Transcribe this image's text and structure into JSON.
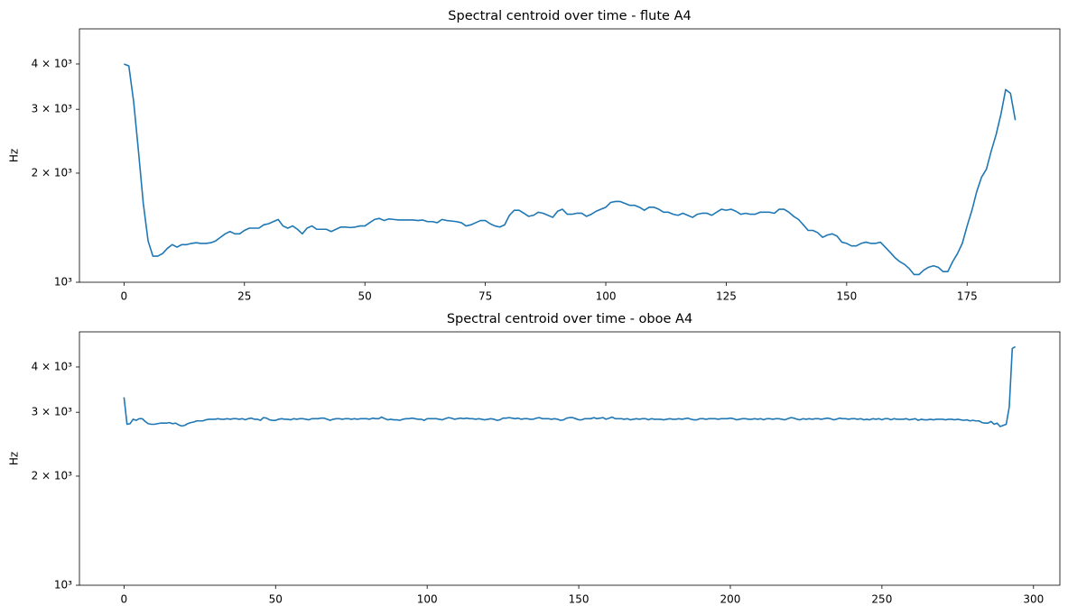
{
  "chart_data": [
    {
      "type": "line",
      "title": "Spectral centroid over time - flute A4",
      "ylabel": "Hz",
      "yscale": "log",
      "xlim": [
        -9.25,
        194.25
      ],
      "xticks": [
        0,
        25,
        50,
        75,
        100,
        125,
        150,
        175
      ],
      "ylim": [
        1000,
        5000
      ],
      "yticks": [
        {
          "value": 1000,
          "label": "10³"
        },
        {
          "value": 2000,
          "label": "2 × 10³"
        },
        {
          "value": 3000,
          "label": "3 × 10³"
        },
        {
          "value": 4000,
          "label": "4 × 10³"
        }
      ],
      "series": [
        {
          "color": "#1f77b4",
          "values": [
            4000,
            3950,
            3150,
            2300,
            1650,
            1300,
            1180,
            1180,
            1200,
            1240,
            1270,
            1250,
            1270,
            1270,
            1280,
            1285,
            1280,
            1280,
            1285,
            1300,
            1330,
            1360,
            1380,
            1360,
            1360,
            1390,
            1410,
            1410,
            1410,
            1440,
            1450,
            1470,
            1490,
            1430,
            1410,
            1430,
            1400,
            1360,
            1410,
            1430,
            1400,
            1400,
            1400,
            1380,
            1400,
            1420,
            1420,
            1415,
            1420,
            1430,
            1430,
            1460,
            1490,
            1500,
            1480,
            1495,
            1490,
            1485,
            1485,
            1485,
            1485,
            1480,
            1485,
            1470,
            1470,
            1460,
            1490,
            1480,
            1475,
            1470,
            1460,
            1430,
            1440,
            1460,
            1480,
            1480,
            1450,
            1430,
            1420,
            1440,
            1530,
            1580,
            1580,
            1550,
            1520,
            1530,
            1560,
            1550,
            1530,
            1510,
            1570,
            1590,
            1540,
            1540,
            1550,
            1550,
            1520,
            1540,
            1570,
            1590,
            1610,
            1660,
            1670,
            1670,
            1650,
            1630,
            1630,
            1610,
            1580,
            1610,
            1610,
            1590,
            1560,
            1560,
            1540,
            1530,
            1550,
            1530,
            1510,
            1540,
            1550,
            1550,
            1530,
            1560,
            1590,
            1580,
            1590,
            1570,
            1540,
            1550,
            1540,
            1540,
            1560,
            1560,
            1560,
            1550,
            1590,
            1590,
            1560,
            1520,
            1490,
            1440,
            1390,
            1390,
            1370,
            1330,
            1350,
            1360,
            1340,
            1290,
            1280,
            1260,
            1260,
            1280,
            1290,
            1280,
            1280,
            1290,
            1250,
            1210,
            1170,
            1140,
            1120,
            1090,
            1050,
            1050,
            1080,
            1100,
            1110,
            1100,
            1070,
            1070,
            1140,
            1200,
            1280,
            1430,
            1580,
            1780,
            1950,
            2050,
            2300,
            2550,
            2900,
            3400,
            3320,
            2800
          ]
        }
      ]
    },
    {
      "type": "line",
      "title": "Spectral centroid over time - oboe A4",
      "ylabel": "Hz",
      "yscale": "log",
      "xlim": [
        -14.7,
        308.7
      ],
      "xticks": [
        0,
        50,
        100,
        150,
        200,
        250,
        300
      ],
      "ylim": [
        1000,
        5000
      ],
      "yticks": [
        {
          "value": 1000,
          "label": "10³"
        },
        {
          "value": 2000,
          "label": "2 × 10³"
        },
        {
          "value": 3000,
          "label": "3 × 10³"
        },
        {
          "value": 4000,
          "label": "4 × 10³"
        }
      ],
      "series": [
        {
          "color": "#1f77b4",
          "values": [
            3300,
            2780,
            2790,
            2870,
            2850,
            2880,
            2880,
            2830,
            2790,
            2780,
            2780,
            2790,
            2800,
            2800,
            2800,
            2810,
            2790,
            2800,
            2770,
            2750,
            2760,
            2790,
            2810,
            2820,
            2840,
            2840,
            2840,
            2860,
            2870,
            2870,
            2870,
            2880,
            2870,
            2870,
            2880,
            2870,
            2880,
            2880,
            2870,
            2880,
            2860,
            2880,
            2890,
            2870,
            2870,
            2850,
            2900,
            2890,
            2860,
            2850,
            2850,
            2870,
            2880,
            2870,
            2870,
            2860,
            2880,
            2870,
            2880,
            2880,
            2870,
            2860,
            2880,
            2880,
            2880,
            2890,
            2890,
            2870,
            2850,
            2870,
            2880,
            2880,
            2870,
            2880,
            2880,
            2870,
            2880,
            2870,
            2880,
            2880,
            2880,
            2870,
            2890,
            2880,
            2880,
            2910,
            2880,
            2860,
            2870,
            2860,
            2860,
            2850,
            2870,
            2880,
            2880,
            2890,
            2880,
            2870,
            2870,
            2850,
            2880,
            2880,
            2880,
            2880,
            2870,
            2860,
            2880,
            2900,
            2890,
            2870,
            2880,
            2890,
            2880,
            2890,
            2880,
            2880,
            2870,
            2880,
            2870,
            2860,
            2870,
            2880,
            2870,
            2850,
            2860,
            2890,
            2890,
            2900,
            2890,
            2880,
            2890,
            2870,
            2880,
            2880,
            2870,
            2870,
            2890,
            2900,
            2880,
            2880,
            2880,
            2870,
            2880,
            2870,
            2850,
            2860,
            2890,
            2900,
            2900,
            2880,
            2860,
            2860,
            2880,
            2880,
            2880,
            2900,
            2880,
            2890,
            2900,
            2870,
            2890,
            2910,
            2880,
            2880,
            2880,
            2870,
            2880,
            2860,
            2870,
            2880,
            2870,
            2880,
            2880,
            2860,
            2880,
            2870,
            2870,
            2870,
            2860,
            2870,
            2880,
            2870,
            2870,
            2880,
            2870,
            2880,
            2890,
            2870,
            2860,
            2860,
            2880,
            2880,
            2870,
            2880,
            2880,
            2880,
            2870,
            2880,
            2880,
            2880,
            2890,
            2880,
            2860,
            2870,
            2880,
            2880,
            2870,
            2870,
            2880,
            2870,
            2880,
            2860,
            2880,
            2880,
            2870,
            2880,
            2880,
            2870,
            2860,
            2880,
            2900,
            2890,
            2870,
            2860,
            2880,
            2870,
            2880,
            2870,
            2880,
            2880,
            2870,
            2880,
            2890,
            2880,
            2860,
            2870,
            2890,
            2880,
            2880,
            2870,
            2880,
            2880,
            2870,
            2880,
            2860,
            2870,
            2860,
            2880,
            2870,
            2880,
            2860,
            2880,
            2880,
            2860,
            2880,
            2870,
            2870,
            2870,
            2880,
            2860,
            2870,
            2880,
            2850,
            2870,
            2860,
            2860,
            2870,
            2860,
            2870,
            2870,
            2870,
            2860,
            2870,
            2870,
            2860,
            2870,
            2860,
            2850,
            2860,
            2840,
            2850,
            2840,
            2840,
            2810,
            2800,
            2800,
            2830,
            2780,
            2800,
            2740,
            2760,
            2780,
            3100,
            4500,
            4550
          ]
        }
      ]
    }
  ]
}
